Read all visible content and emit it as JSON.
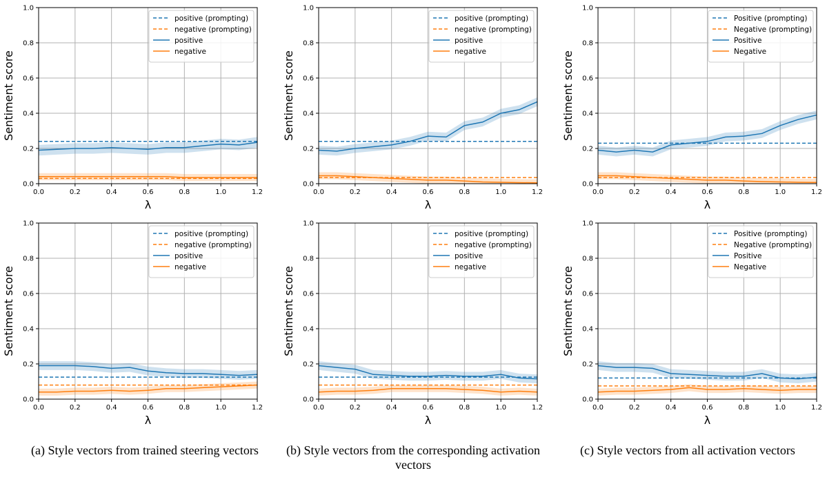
{
  "chart_data": [
    {
      "type": "line",
      "xlabel": "λ",
      "ylabel": "Sentiment score",
      "xlim": [
        0,
        1.2
      ],
      "ylim": [
        0,
        1.0
      ],
      "xticks": [
        "0.0",
        "0.2",
        "0.4",
        "0.6",
        "0.8",
        "1.0",
        "1.2"
      ],
      "yticks": [
        "0.0",
        "0.2",
        "0.4",
        "0.6",
        "0.8",
        "1.0"
      ],
      "grid": true,
      "legend": "top-right",
      "x": [
        0,
        0.1,
        0.2,
        0.3,
        0.4,
        0.5,
        0.6,
        0.7,
        0.8,
        0.9,
        1.0,
        1.1,
        1.2
      ],
      "series": [
        {
          "name": "positive (prompting)",
          "style": "dashed",
          "color": "#1f77b4",
          "values": [
            0.24,
            0.24,
            0.24,
            0.24,
            0.24,
            0.24,
            0.24,
            0.24,
            0.24,
            0.24,
            0.24,
            0.24,
            0.24
          ]
        },
        {
          "name": "negative (prompting)",
          "style": "dashed",
          "color": "#ff7f0e",
          "values": [
            0.03,
            0.03,
            0.03,
            0.03,
            0.03,
            0.03,
            0.03,
            0.03,
            0.03,
            0.03,
            0.03,
            0.03,
            0.03
          ]
        },
        {
          "name": "positive",
          "style": "solid",
          "color": "#1f77b4",
          "band": 0.03,
          "values": [
            0.19,
            0.195,
            0.2,
            0.2,
            0.205,
            0.2,
            0.195,
            0.205,
            0.205,
            0.215,
            0.225,
            0.22,
            0.235
          ]
        },
        {
          "name": "negative",
          "style": "solid",
          "color": "#ff7f0e",
          "band": 0.02,
          "values": [
            0.04,
            0.04,
            0.04,
            0.04,
            0.04,
            0.04,
            0.04,
            0.04,
            0.035,
            0.035,
            0.035,
            0.035,
            0.035
          ]
        }
      ]
    },
    {
      "type": "line",
      "xlabel": "λ",
      "ylabel": "Sentiment score",
      "xlim": [
        0,
        1.2
      ],
      "ylim": [
        0,
        1.0
      ],
      "xticks": [
        "0.0",
        "0.2",
        "0.4",
        "0.6",
        "0.8",
        "1.0",
        "1.2"
      ],
      "yticks": [
        "0.0",
        "0.2",
        "0.4",
        "0.6",
        "0.8",
        "1.0"
      ],
      "grid": true,
      "legend": "top-right",
      "x": [
        0,
        0.1,
        0.2,
        0.3,
        0.4,
        0.5,
        0.6,
        0.7,
        0.8,
        0.9,
        1.0,
        1.1,
        1.2
      ],
      "series": [
        {
          "name": "positive (prompting)",
          "style": "dashed",
          "color": "#1f77b4",
          "values": [
            0.24,
            0.24,
            0.24,
            0.24,
            0.24,
            0.24,
            0.24,
            0.24,
            0.24,
            0.24,
            0.24,
            0.24,
            0.24
          ]
        },
        {
          "name": "negative (prompting)",
          "style": "dashed",
          "color": "#ff7f0e",
          "values": [
            0.035,
            0.035,
            0.035,
            0.035,
            0.035,
            0.035,
            0.035,
            0.035,
            0.035,
            0.035,
            0.035,
            0.035,
            0.035
          ]
        },
        {
          "name": "positive",
          "style": "solid",
          "color": "#1f77b4",
          "band": 0.025,
          "values": [
            0.19,
            0.185,
            0.2,
            0.21,
            0.22,
            0.24,
            0.27,
            0.265,
            0.33,
            0.35,
            0.4,
            0.42,
            0.465
          ]
        },
        {
          "name": "negative",
          "style": "solid",
          "color": "#ff7f0e",
          "band": 0.02,
          "values": [
            0.045,
            0.045,
            0.04,
            0.035,
            0.03,
            0.025,
            0.02,
            0.02,
            0.015,
            0.01,
            0.008,
            0.006,
            0.005
          ]
        }
      ]
    },
    {
      "type": "line",
      "xlabel": "λ",
      "ylabel": "Sentiment score",
      "xlim": [
        0,
        1.2
      ],
      "ylim": [
        0,
        1.0
      ],
      "xticks": [
        "0.0",
        "0.2",
        "0.4",
        "0.6",
        "0.8",
        "1.0",
        "1.2"
      ],
      "yticks": [
        "0.0",
        "0.2",
        "0.4",
        "0.6",
        "0.8",
        "1.0"
      ],
      "grid": true,
      "legend": "top-right",
      "x": [
        0,
        0.1,
        0.2,
        0.3,
        0.4,
        0.5,
        0.6,
        0.7,
        0.8,
        0.9,
        1.0,
        1.1,
        1.2
      ],
      "series": [
        {
          "name": "Positive (prompting)",
          "style": "dashed",
          "color": "#1f77b4",
          "values": [
            0.23,
            0.23,
            0.23,
            0.23,
            0.23,
            0.23,
            0.23,
            0.23,
            0.23,
            0.23,
            0.23,
            0.23,
            0.23
          ]
        },
        {
          "name": "Negative (prompting)",
          "style": "dashed",
          "color": "#ff7f0e",
          "values": [
            0.035,
            0.035,
            0.035,
            0.035,
            0.035,
            0.035,
            0.035,
            0.035,
            0.035,
            0.035,
            0.035,
            0.035,
            0.035
          ]
        },
        {
          "name": "Positive",
          "style": "solid",
          "color": "#1f77b4",
          "band": 0.025,
          "values": [
            0.19,
            0.18,
            0.19,
            0.18,
            0.22,
            0.23,
            0.24,
            0.265,
            0.27,
            0.285,
            0.33,
            0.365,
            0.39
          ]
        },
        {
          "name": "Negative",
          "style": "solid",
          "color": "#ff7f0e",
          "band": 0.02,
          "values": [
            0.045,
            0.045,
            0.04,
            0.035,
            0.03,
            0.025,
            0.02,
            0.02,
            0.015,
            0.012,
            0.01,
            0.008,
            0.007
          ]
        }
      ]
    },
    {
      "type": "line",
      "xlabel": "λ",
      "ylabel": "Sentiment score",
      "xlim": [
        0,
        1.2
      ],
      "ylim": [
        0,
        1.0
      ],
      "xticks": [
        "0.0",
        "0.2",
        "0.4",
        "0.6",
        "0.8",
        "1.0",
        "1.2"
      ],
      "yticks": [
        "0.0",
        "0.2",
        "0.4",
        "0.6",
        "0.8",
        "1.0"
      ],
      "grid": true,
      "legend": "top-right",
      "x": [
        0,
        0.1,
        0.2,
        0.3,
        0.4,
        0.5,
        0.6,
        0.7,
        0.8,
        0.9,
        1.0,
        1.1,
        1.2
      ],
      "series": [
        {
          "name": "positive (prompting)",
          "style": "dashed",
          "color": "#1f77b4",
          "values": [
            0.125,
            0.125,
            0.125,
            0.125,
            0.125,
            0.125,
            0.125,
            0.125,
            0.125,
            0.125,
            0.125,
            0.125,
            0.125
          ]
        },
        {
          "name": "negative (prompting)",
          "style": "dashed",
          "color": "#ff7f0e",
          "values": [
            0.08,
            0.08,
            0.08,
            0.08,
            0.08,
            0.08,
            0.08,
            0.08,
            0.08,
            0.08,
            0.08,
            0.08,
            0.08
          ]
        },
        {
          "name": "positive",
          "style": "solid",
          "color": "#1f77b4",
          "band": 0.025,
          "values": [
            0.19,
            0.19,
            0.19,
            0.185,
            0.175,
            0.18,
            0.16,
            0.15,
            0.145,
            0.145,
            0.14,
            0.135,
            0.14
          ]
        },
        {
          "name": "negative",
          "style": "solid",
          "color": "#ff7f0e",
          "band": 0.02,
          "values": [
            0.04,
            0.04,
            0.045,
            0.045,
            0.05,
            0.045,
            0.05,
            0.06,
            0.06,
            0.065,
            0.07,
            0.075,
            0.08
          ]
        }
      ]
    },
    {
      "type": "line",
      "xlabel": "λ",
      "ylabel": "Sentiment score",
      "xlim": [
        0,
        1.2
      ],
      "ylim": [
        0,
        1.0
      ],
      "xticks": [
        "0.0",
        "0.2",
        "0.4",
        "0.6",
        "0.8",
        "1.0",
        "1.2"
      ],
      "yticks": [
        "0.0",
        "0.2",
        "0.4",
        "0.6",
        "0.8",
        "1.0"
      ],
      "grid": true,
      "legend": "top-right",
      "x": [
        0,
        0.1,
        0.2,
        0.3,
        0.4,
        0.5,
        0.6,
        0.7,
        0.8,
        0.9,
        1.0,
        1.1,
        1.2
      ],
      "series": [
        {
          "name": "positive (prompting)",
          "style": "dashed",
          "color": "#1f77b4",
          "values": [
            0.125,
            0.125,
            0.125,
            0.125,
            0.125,
            0.125,
            0.125,
            0.125,
            0.125,
            0.125,
            0.125,
            0.125,
            0.125
          ]
        },
        {
          "name": "negative (prompting)",
          "style": "dashed",
          "color": "#ff7f0e",
          "values": [
            0.08,
            0.08,
            0.08,
            0.08,
            0.08,
            0.08,
            0.08,
            0.08,
            0.08,
            0.08,
            0.08,
            0.08,
            0.08
          ]
        },
        {
          "name": "positive",
          "style": "solid",
          "color": "#1f77b4",
          "band": 0.025,
          "values": [
            0.19,
            0.18,
            0.17,
            0.14,
            0.135,
            0.13,
            0.13,
            0.135,
            0.13,
            0.13,
            0.14,
            0.12,
            0.115
          ]
        },
        {
          "name": "negative",
          "style": "solid",
          "color": "#ff7f0e",
          "band": 0.02,
          "values": [
            0.04,
            0.045,
            0.045,
            0.05,
            0.06,
            0.06,
            0.06,
            0.06,
            0.055,
            0.05,
            0.04,
            0.045,
            0.04
          ]
        }
      ]
    },
    {
      "type": "line",
      "xlabel": "λ",
      "ylabel": "Sentiment score",
      "xlim": [
        0,
        1.2
      ],
      "ylim": [
        0,
        1.0
      ],
      "xticks": [
        "0.0",
        "0.2",
        "0.4",
        "0.6",
        "0.8",
        "1.0",
        "1.2"
      ],
      "yticks": [
        "0.0",
        "0.2",
        "0.4",
        "0.6",
        "0.8",
        "1.0"
      ],
      "grid": true,
      "legend": "top-right",
      "x": [
        0,
        0.1,
        0.2,
        0.3,
        0.4,
        0.5,
        0.6,
        0.7,
        0.8,
        0.9,
        1.0,
        1.1,
        1.2
      ],
      "series": [
        {
          "name": "Positive (prompting)",
          "style": "dashed",
          "color": "#1f77b4",
          "values": [
            0.12,
            0.12,
            0.12,
            0.12,
            0.12,
            0.12,
            0.12,
            0.12,
            0.12,
            0.12,
            0.12,
            0.12,
            0.12
          ]
        },
        {
          "name": "Negative (prompting)",
          "style": "dashed",
          "color": "#ff7f0e",
          "values": [
            0.075,
            0.075,
            0.075,
            0.075,
            0.075,
            0.075,
            0.075,
            0.075,
            0.075,
            0.075,
            0.075,
            0.075,
            0.075
          ]
        },
        {
          "name": "Positive",
          "style": "solid",
          "color": "#1f77b4",
          "band": 0.025,
          "values": [
            0.19,
            0.18,
            0.18,
            0.175,
            0.145,
            0.14,
            0.135,
            0.13,
            0.13,
            0.145,
            0.12,
            0.115,
            0.125
          ]
        },
        {
          "name": "Negative",
          "style": "solid",
          "color": "#ff7f0e",
          "band": 0.02,
          "values": [
            0.04,
            0.045,
            0.045,
            0.05,
            0.055,
            0.065,
            0.055,
            0.055,
            0.06,
            0.055,
            0.05,
            0.055,
            0.055
          ]
        }
      ]
    }
  ],
  "captions": {
    "a": "(a) Style vectors from trained steering vectors",
    "b": "(b) Style vectors from the corresponding activation vectors",
    "c": "(c) Style vectors from all activation vectors"
  }
}
